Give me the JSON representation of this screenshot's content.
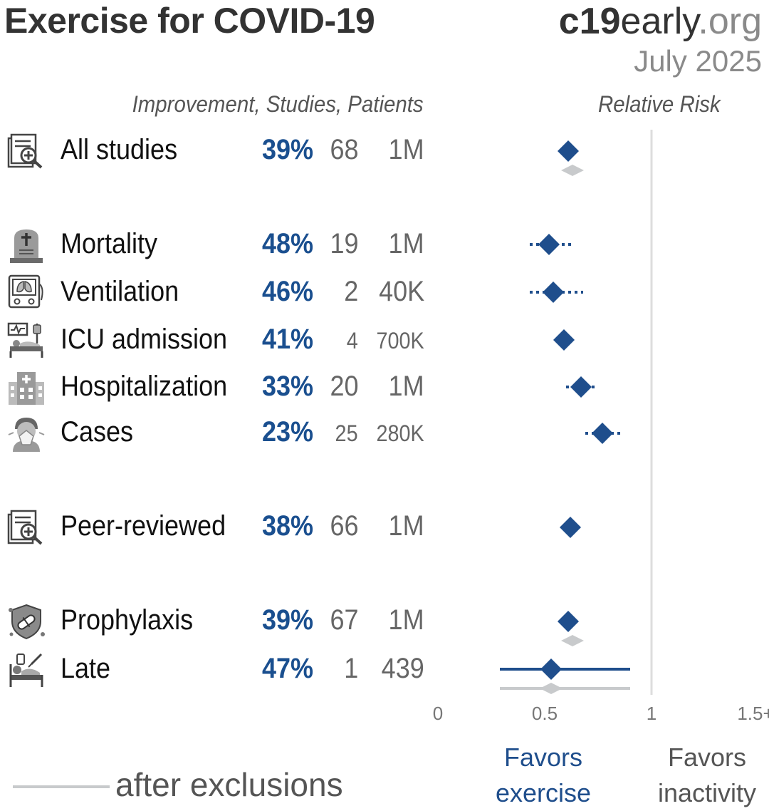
{
  "header": {
    "title": "Exercise for COVID-19",
    "brand_part1": "c19",
    "brand_part2": "early",
    "brand_part3": ".org",
    "date": "July 2025",
    "columns_label": "Improvement, Studies, Patients",
    "rr_label": "Relative Risk"
  },
  "rows": [
    {
      "label": "All studies",
      "improvement": "39%",
      "studies": "68",
      "patients": "1M",
      "icon": "study-document-icon"
    },
    {
      "label": "Mortality",
      "improvement": "48%",
      "studies": "19",
      "patients": "1M",
      "icon": "tombstone-icon"
    },
    {
      "label": "Ventilation",
      "improvement": "46%",
      "studies": "2",
      "patients": "40K",
      "icon": "ventilator-icon"
    },
    {
      "label": "ICU admission",
      "improvement": "41%",
      "studies": "4",
      "patients": "700K",
      "icon": "icu-bed-icon"
    },
    {
      "label": "Hospitalization",
      "improvement": "33%",
      "studies": "20",
      "patients": "1M",
      "icon": "hospital-icon"
    },
    {
      "label": "Cases",
      "improvement": "23%",
      "studies": "25",
      "patients": "280K",
      "icon": "sick-person-icon"
    },
    {
      "label": "Peer-reviewed",
      "improvement": "38%",
      "studies": "66",
      "patients": "1M",
      "icon": "study-document-icon"
    },
    {
      "label": "Prophylaxis",
      "improvement": "39%",
      "studies": "67",
      "patients": "1M",
      "icon": "shield-pill-icon"
    },
    {
      "label": "Late",
      "improvement": "47%",
      "studies": "1",
      "patients": "439",
      "icon": "patient-bed-icon"
    }
  ],
  "chart_data": {
    "type": "forest",
    "xlabel": "Relative Risk",
    "xlim": [
      0,
      1.5
    ],
    "ticks": [
      "0",
      "0.5",
      "1",
      "1.5+"
    ],
    "tick_values": [
      0,
      0.5,
      1,
      1.5
    ],
    "reference_line": 1,
    "favors_left": "Favors exercise",
    "favors_right": "Favors inactivity",
    "legend": "after exclusions",
    "series": [
      {
        "name": "All studies",
        "rr": 0.61,
        "ci": [
          0.57,
          0.66
        ],
        "excl_rr": 0.63
      },
      {
        "name": "Mortality",
        "rr": 0.52,
        "ci": [
          0.43,
          0.63
        ]
      },
      {
        "name": "Ventilation",
        "rr": 0.54,
        "ci": [
          0.43,
          0.68
        ]
      },
      {
        "name": "ICU admission",
        "rr": 0.59,
        "ci": [
          0.55,
          0.64
        ]
      },
      {
        "name": "Hospitalization",
        "rr": 0.67,
        "ci": [
          0.6,
          0.75
        ]
      },
      {
        "name": "Cases",
        "rr": 0.77,
        "ci": [
          0.69,
          0.86
        ]
      },
      {
        "name": "Peer-reviewed",
        "rr": 0.62,
        "ci": [
          0.58,
          0.67
        ]
      },
      {
        "name": "Prophylaxis",
        "rr": 0.61,
        "ci": [
          0.57,
          0.66
        ],
        "excl_rr": 0.63
      },
      {
        "name": "Late",
        "rr": 0.53,
        "ci": [
          0.29,
          0.9
        ],
        "excl_rr": 0.53,
        "excl_ci": [
          0.29,
          0.9
        ]
      }
    ],
    "colors": {
      "primary": "#1f4e8c",
      "excluded": "#c8cacc",
      "reference": "#dddddd"
    }
  }
}
